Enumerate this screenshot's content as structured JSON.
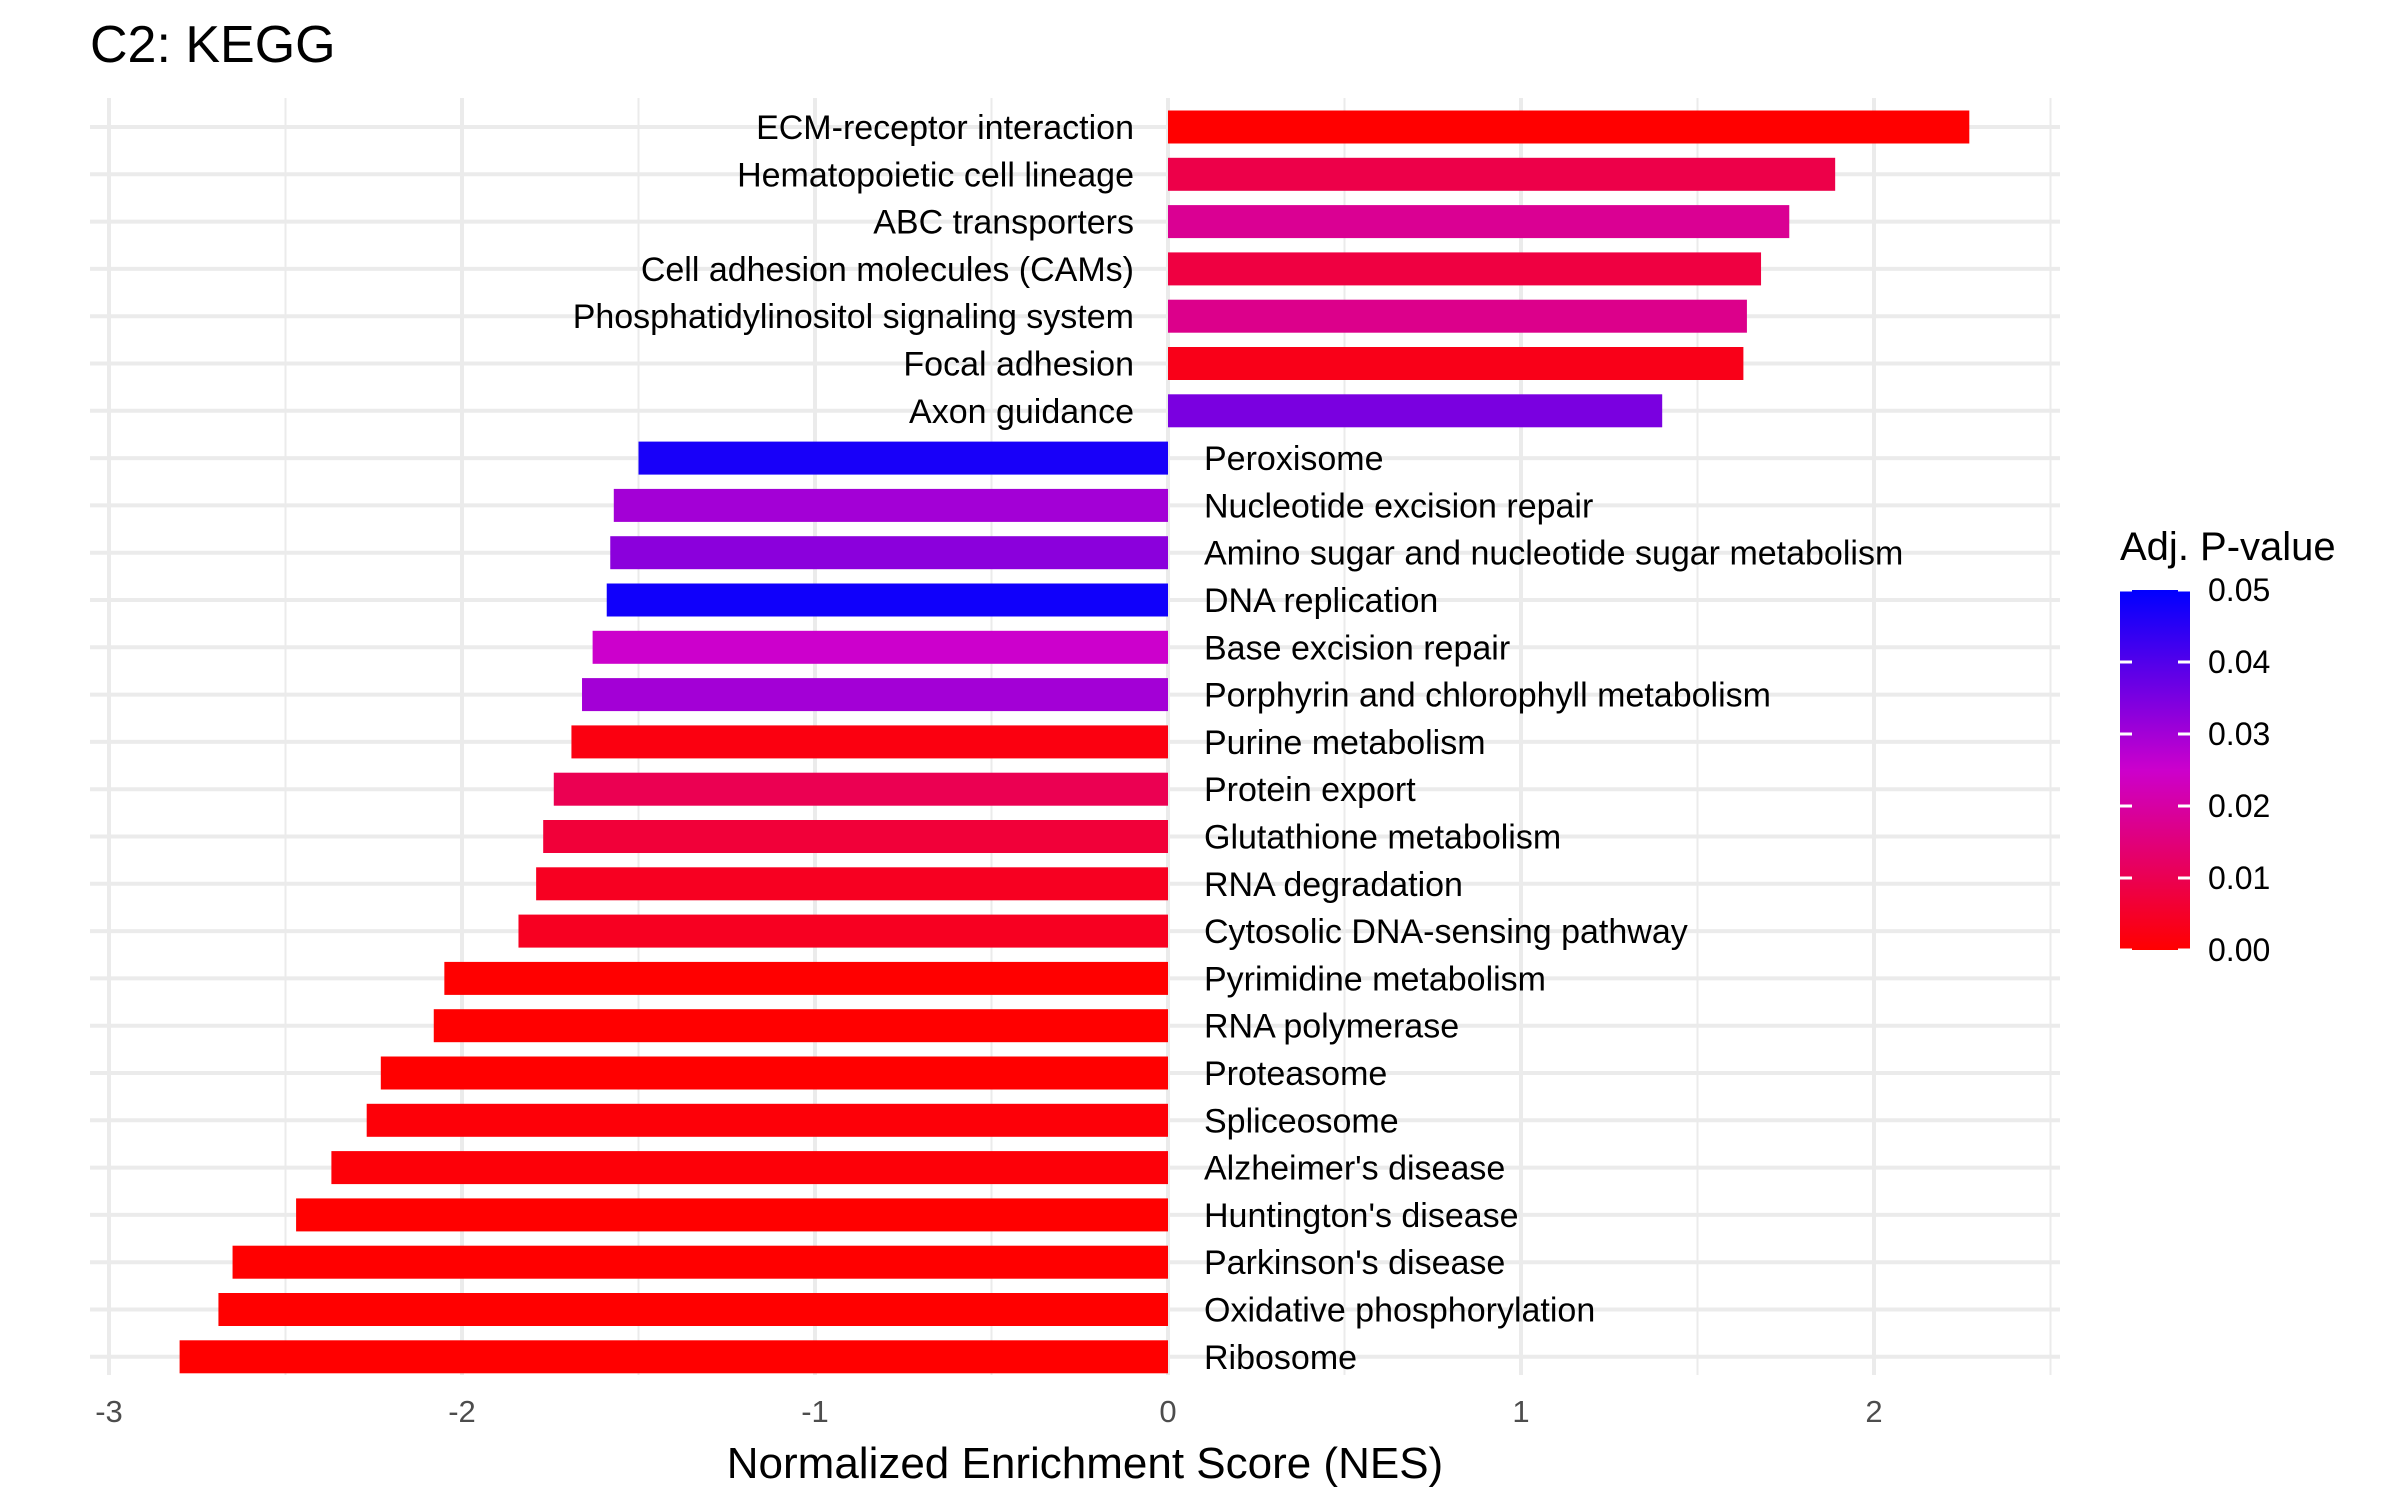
{
  "chart_data": {
    "type": "bar",
    "orientation": "horizontal",
    "title": "C2: KEGG",
    "xlabel": "Normalized Enrichment Score (NES)",
    "ylabel": "",
    "xlim": [
      -3,
      2.5
    ],
    "x_ticks": [
      -3,
      -2,
      -1,
      0,
      1,
      2
    ],
    "x_tick_labels": [
      "-3",
      "-2",
      "-1",
      "0",
      "1",
      "2"
    ],
    "grid": true,
    "categories": [
      "ECM-receptor interaction",
      "Hematopoietic cell lineage",
      "ABC transporters",
      "Cell adhesion molecules (CAMs)",
      "Phosphatidylinositol signaling system",
      "Focal adhesion",
      "Axon guidance",
      "Peroxisome",
      "Nucleotide excision repair",
      "Amino sugar and nucleotide sugar metabolism",
      "DNA replication",
      "Base excision repair",
      "Porphyrin and chlorophyll metabolism",
      "Purine metabolism",
      "Protein export",
      "Glutathione metabolism",
      "RNA degradation",
      "Cytosolic DNA-sensing pathway",
      "Pyrimidine metabolism",
      "RNA polymerase",
      "Proteasome",
      "Spliceosome",
      "Alzheimer's disease",
      "Huntington's disease",
      "Parkinson's disease",
      "Oxidative phosphorylation",
      "Ribosome"
    ],
    "values": [
      2.27,
      1.89,
      1.76,
      1.68,
      1.64,
      1.63,
      1.4,
      -1.5,
      -1.57,
      -1.58,
      -1.59,
      -1.63,
      -1.66,
      -1.69,
      -1.74,
      -1.77,
      -1.79,
      -1.84,
      -2.05,
      -2.08,
      -2.23,
      -2.27,
      -2.37,
      -2.47,
      -2.65,
      -2.69,
      -2.8
    ],
    "color_values": [
      0.0,
      0.009,
      0.018,
      0.008,
      0.017,
      0.003,
      0.035,
      0.047,
      0.03,
      0.033,
      0.048,
      0.025,
      0.03,
      0.002,
      0.01,
      0.007,
      0.004,
      0.004,
      0.0,
      0.0,
      0.0,
      0.001,
      0.001,
      0.0,
      0.0,
      0.0,
      0.0
    ],
    "legend": {
      "title": "Adj. P-value",
      "placement": "right",
      "range": [
        0.0,
        0.05
      ],
      "ticks": [
        0.05,
        0.04,
        0.03,
        0.02,
        0.01,
        0.0
      ],
      "tick_labels": [
        "0.05",
        "0.04",
        "0.03",
        "0.02",
        "0.01",
        "0.00"
      ],
      "low_color": "#ff0000",
      "high_color": "#0000ff"
    }
  }
}
